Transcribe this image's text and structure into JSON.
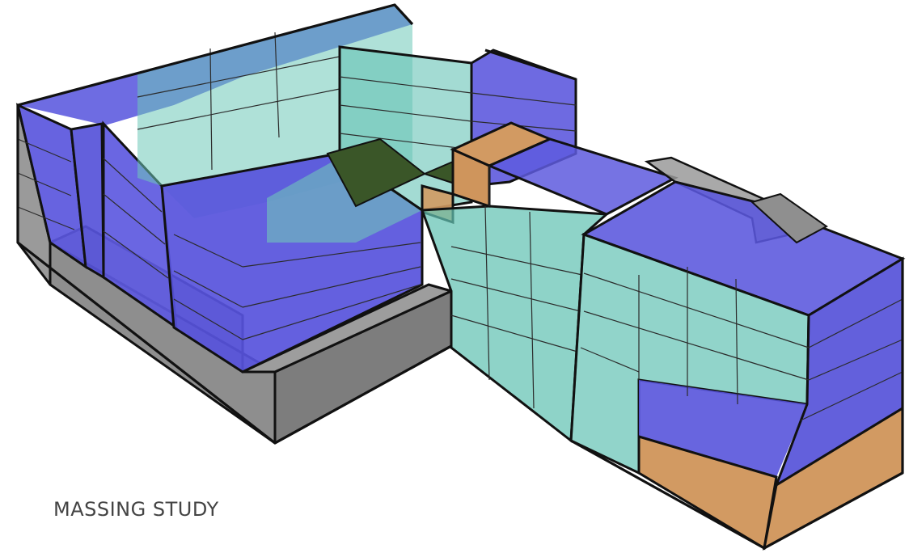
{
  "caption": "MASSING STUDY",
  "colors": {
    "volume_blue": "#5b57dd",
    "volume_teal": "#63c2b3",
    "volume_orange": "#d29a62",
    "podium_gray": "#8e8e8e",
    "courtyard_green": "#3a5628",
    "outline": "#111111",
    "floor_line": "#2b2b2b"
  },
  "legend_items": []
}
